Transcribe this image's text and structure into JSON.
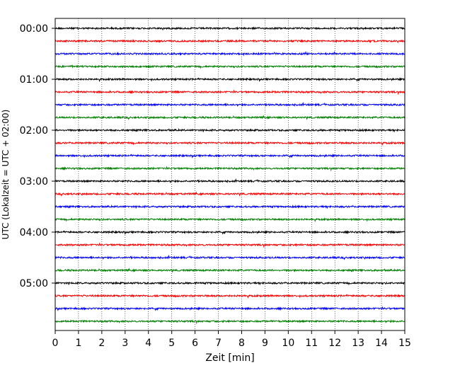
{
  "chart_data": {
    "type": "line",
    "title": "",
    "xlabel": "Zeit  [min]",
    "ylabel": "UTC (Lokalzeit = UTC + 02:00)",
    "xlim": [
      0,
      15
    ],
    "x_ticks": [
      "0",
      "1",
      "2",
      "3",
      "4",
      "5",
      "6",
      "7",
      "8",
      "9",
      "10",
      "11",
      "12",
      "13",
      "14",
      "15"
    ],
    "y_tick_labels": [
      "00:00",
      "01:00",
      "02:00",
      "03:00",
      "04:00",
      "05:00"
    ],
    "grid": "vertical dotted lines at each minute",
    "legend": "none",
    "trace_interval_min": 15,
    "trace_count": 24,
    "trace_starts_utc": [
      "00:00",
      "00:15",
      "00:30",
      "00:45",
      "01:00",
      "01:15",
      "01:30",
      "01:45",
      "02:00",
      "02:15",
      "02:30",
      "02:45",
      "03:00",
      "03:15",
      "03:30",
      "03:45",
      "04:00",
      "04:15",
      "04:30",
      "04:45",
      "05:00",
      "05:15",
      "05:30",
      "05:45"
    ],
    "color_cycle": [
      "#000000",
      "#ff0000",
      "#0000ff",
      "#008000"
    ]
  }
}
